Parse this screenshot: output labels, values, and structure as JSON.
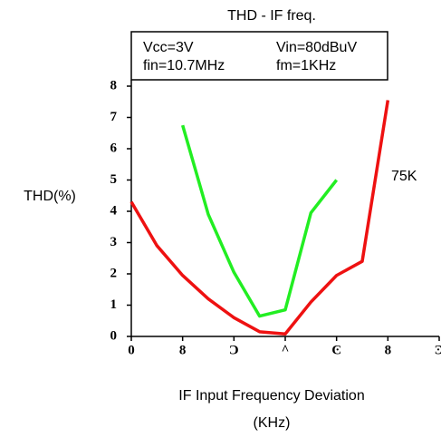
{
  "chart_data": {
    "type": "line",
    "title": "THD - IF freq.",
    "conditions": [
      "Vcc=3V",
      "Vin=80dBuV",
      "fin=10.7MHz",
      "fm=1KHz"
    ],
    "ylabel": "THD(%)",
    "xlabel": [
      "IF Input Frequency Deviation",
      "(KHz)"
    ],
    "annotation": "75K",
    "xlim": [
      -300,
      300
    ],
    "xticks": [
      {
        "value": -300,
        "label": "0"
      },
      {
        "value": -200,
        "label": "8"
      },
      {
        "value": -100,
        "label": "Ͻ"
      },
      {
        "value": 0,
        "label": "^"
      },
      {
        "value": 100,
        "label": "Ͼ"
      },
      {
        "value": 200,
        "label": "8"
      },
      {
        "value": 300,
        "label": "Ͽ"
      }
    ],
    "ylim": [
      0,
      8
    ],
    "yticks": [
      0,
      1,
      2,
      3,
      4,
      5,
      6,
      7,
      8
    ],
    "series": [
      {
        "name": "75K",
        "color": "#ee1111",
        "x": [
          -300,
          -250,
          -200,
          -150,
          -100,
          -50,
          0,
          50,
          100,
          150,
          200
        ],
        "values": [
          4.3,
          2.9,
          1.95,
          1.2,
          0.6,
          0.15,
          0.08,
          1.1,
          1.95,
          2.4,
          7.55
        ]
      },
      {
        "color": "#22ee22",
        "x": [
          -200,
          -150,
          -100,
          -50,
          0,
          50,
          100
        ],
        "values": [
          6.75,
          3.9,
          2.05,
          0.65,
          0.85,
          3.95,
          5.0
        ]
      }
    ]
  }
}
